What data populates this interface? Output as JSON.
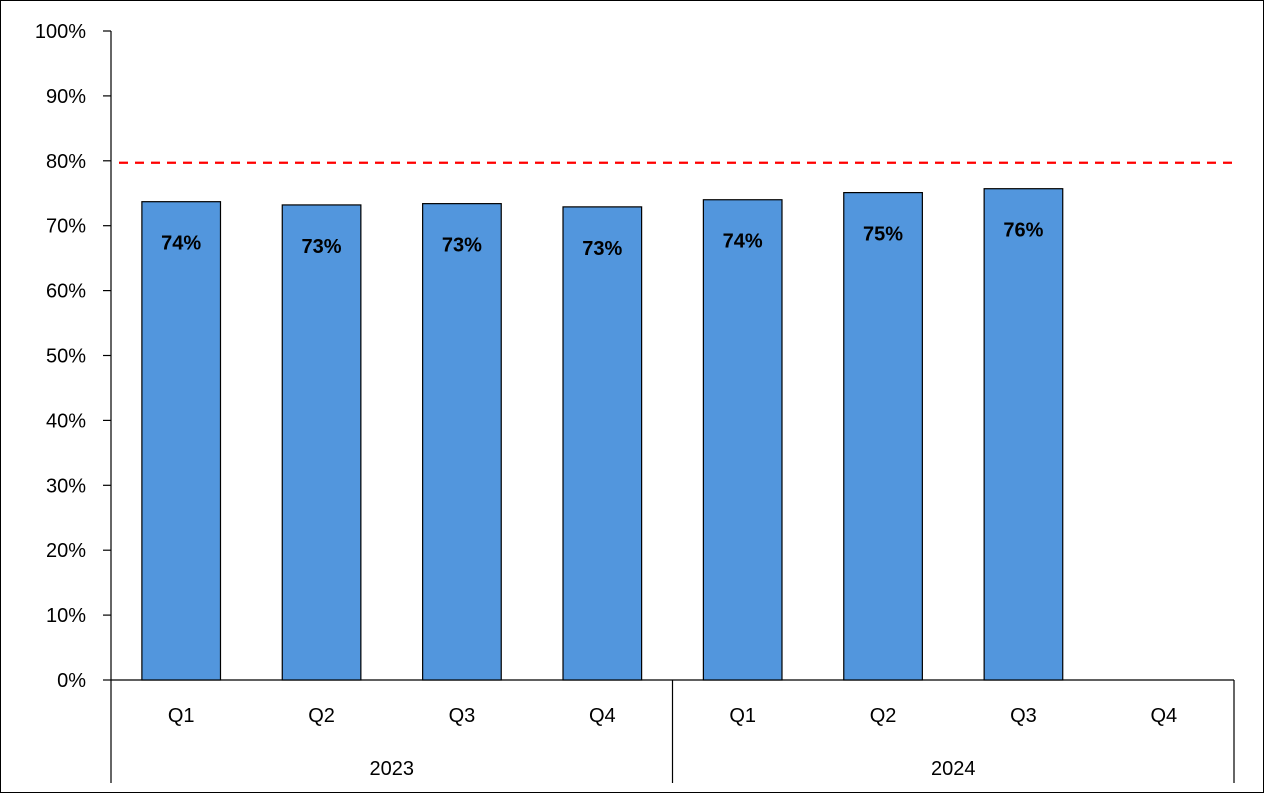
{
  "chart_data": {
    "type": "bar",
    "groups": [
      {
        "label": "2023",
        "categories": [
          "Q1",
          "Q2",
          "Q3",
          "Q4"
        ]
      },
      {
        "label": "2024",
        "categories": [
          "Q1",
          "Q2",
          "Q3",
          "Q4"
        ]
      }
    ],
    "categories": [
      "Q1",
      "Q2",
      "Q3",
      "Q4",
      "Q1",
      "Q2",
      "Q3",
      "Q4"
    ],
    "values": [
      0.737,
      0.732,
      0.734,
      0.729,
      0.74,
      0.751,
      0.757,
      null
    ],
    "data_labels": [
      "74%",
      "73%",
      "73%",
      "73%",
      "74%",
      "75%",
      "76%",
      ""
    ],
    "yticks": [
      "0%",
      "10%",
      "20%",
      "30%",
      "40%",
      "50%",
      "60%",
      "70%",
      "80%",
      "90%",
      "100%"
    ],
    "ylim": [
      0,
      1
    ],
    "target_line": {
      "value": 0.797,
      "style": "dashed",
      "color": "#ff0000"
    },
    "bar_color": "#5296dd",
    "grid": false,
    "legend": "none",
    "title": "",
    "xlabel": "",
    "ylabel": ""
  }
}
